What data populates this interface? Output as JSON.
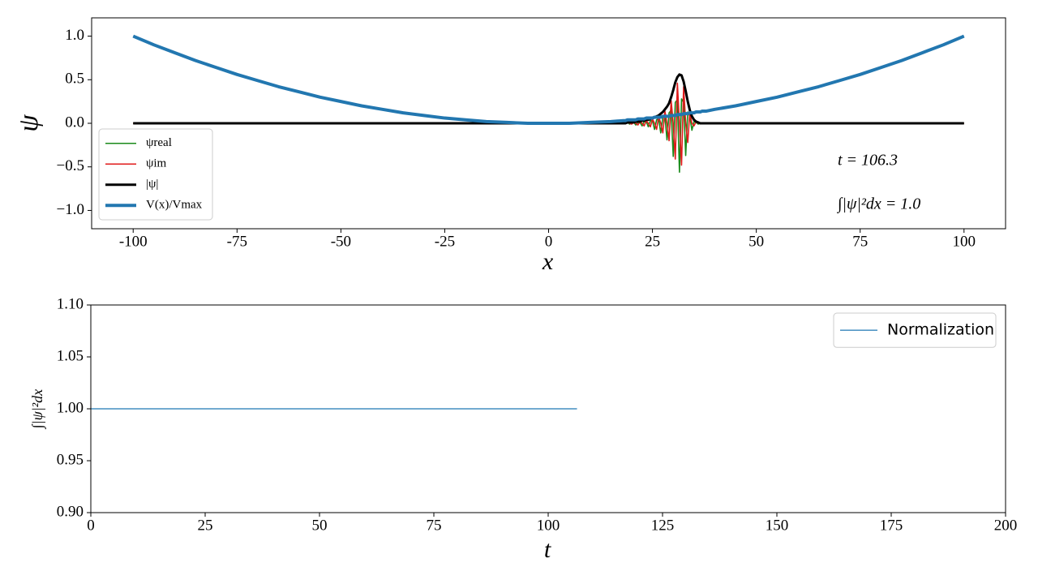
{
  "chart_data": [
    {
      "type": "line",
      "xlabel": "x",
      "ylabel": "ψ",
      "xlim": [
        -110,
        110
      ],
      "ylim": [
        -1.21,
        1.21
      ],
      "xticks": [
        -100,
        -75,
        -50,
        -25,
        0,
        25,
        50,
        75,
        100
      ],
      "yticks": [
        {
          "value": -1.0,
          "label": "−1.0"
        },
        {
          "value": -0.5,
          "label": "−0.5"
        },
        {
          "value": 0.0,
          "label": "0.0"
        },
        {
          "value": 0.5,
          "label": "0.5"
        },
        {
          "value": 1.0,
          "label": "1.0"
        }
      ],
      "legend": "lower left",
      "annotations": [
        "t = 106.3",
        "∫|ψ|²dx = 1.0"
      ],
      "x": [
        -100,
        -95,
        -90,
        -85,
        -80,
        -75,
        -70,
        -65,
        -60,
        -55,
        -50,
        -45,
        -40,
        -35,
        -30,
        -25,
        -20,
        -15,
        -10,
        -5,
        0,
        5,
        10,
        15,
        18,
        18.5,
        19,
        19.5,
        20,
        20.5,
        21,
        21.5,
        22,
        22.5,
        23,
        23.5,
        24,
        24.5,
        25,
        25.5,
        26,
        26.5,
        27,
        27.5,
        28,
        28.5,
        29,
        29.5,
        30,
        30.5,
        31,
        31.5,
        32,
        32.5,
        33,
        33.5,
        34,
        34.5,
        35,
        35.5,
        36,
        36.5,
        37,
        37.5,
        38,
        40,
        45,
        50,
        55,
        60,
        65,
        70,
        75,
        80,
        85,
        90,
        95,
        100
      ],
      "series": [
        {
          "name": "ψreal",
          "color": "#1a8a1a",
          "linewidth": 1.6,
          "values": [
            0,
            0,
            0,
            0,
            0,
            0,
            0,
            0,
            0,
            0,
            0,
            0,
            0,
            0,
            0,
            0,
            0,
            0,
            0,
            0,
            0,
            0,
            0,
            0,
            0,
            0,
            0.01,
            -0.01,
            0.01,
            0.01,
            -0.02,
            0.01,
            0.01,
            -0.03,
            0.02,
            0.02,
            -0.04,
            0.03,
            0.03,
            -0.07,
            0.04,
            0.05,
            -0.11,
            0.07,
            0.08,
            -0.19,
            0.12,
            0.15,
            -0.38,
            0.24,
            0.27,
            -0.56,
            0.28,
            0.24,
            -0.37,
            0.13,
            0.08,
            -0.08,
            0.02,
            0.01,
            -0.01,
            0,
            0,
            0,
            0,
            0,
            0,
            0,
            0,
            0,
            0,
            0,
            0,
            0,
            0,
            0,
            0,
            0
          ]
        },
        {
          "name": "ψim",
          "color": "#e01b1b",
          "linewidth": 1.6,
          "values": [
            0,
            0,
            0,
            0,
            0,
            0,
            0,
            0,
            0,
            0,
            0,
            0,
            0,
            0,
            0,
            0,
            0,
            0,
            0,
            0,
            0,
            0,
            0,
            0,
            0,
            0,
            0.01,
            0,
            -0.01,
            0.01,
            0,
            -0.02,
            0.02,
            0,
            -0.03,
            0.03,
            0,
            -0.04,
            0.05,
            0,
            -0.07,
            0.08,
            0,
            -0.11,
            0.14,
            0,
            -0.2,
            0.26,
            0,
            -0.41,
            0.46,
            0,
            -0.48,
            0.42,
            0,
            -0.22,
            0.13,
            0,
            -0.03,
            0.02,
            0,
            0,
            0,
            0,
            0,
            0,
            0,
            0,
            0,
            0,
            0,
            0,
            0,
            0,
            0,
            0,
            0,
            0
          ]
        },
        {
          "name": "|ψ|",
          "color": "#000000",
          "linewidth": 3,
          "values": [
            0,
            0,
            0,
            0,
            0,
            0,
            0,
            0,
            0,
            0,
            0,
            0,
            0,
            0,
            0,
            0,
            0,
            0,
            0,
            0,
            0,
            0,
            0,
            0,
            0,
            0,
            0.01,
            0.01,
            0.01,
            0.01,
            0.02,
            0.02,
            0.02,
            0.03,
            0.03,
            0.04,
            0.04,
            0.05,
            0.06,
            0.07,
            0.08,
            0.09,
            0.11,
            0.13,
            0.16,
            0.19,
            0.23,
            0.3,
            0.38,
            0.47,
            0.53,
            0.56,
            0.55,
            0.48,
            0.37,
            0.25,
            0.15,
            0.08,
            0.04,
            0.02,
            0.01,
            0,
            0,
            0,
            0,
            0,
            0,
            0,
            0,
            0,
            0,
            0,
            0,
            0,
            0,
            0,
            0,
            0
          ]
        },
        {
          "name": "V(x)/Vmax",
          "color": "#2277b0",
          "linewidth": 4,
          "values": [
            1,
            0.9,
            0.81,
            0.72,
            0.64,
            0.56,
            0.49,
            0.42,
            0.36,
            0.3,
            0.25,
            0.2,
            0.16,
            0.12,
            0.09,
            0.06,
            0.04,
            0.02,
            0.01,
            0,
            0,
            0,
            0.01,
            0.02,
            0.03,
            0.03,
            0.04,
            0.04,
            0.04,
            0.04,
            0.04,
            0.05,
            0.05,
            0.05,
            0.05,
            0.06,
            0.06,
            0.06,
            0.06,
            0.07,
            0.07,
            0.07,
            0.07,
            0.08,
            0.08,
            0.08,
            0.08,
            0.09,
            0.09,
            0.09,
            0.1,
            0.1,
            0.1,
            0.11,
            0.11,
            0.11,
            0.12,
            0.12,
            0.12,
            0.13,
            0.13,
            0.13,
            0.14,
            0.14,
            0.14,
            0.16,
            0.2,
            0.25,
            0.3,
            0.36,
            0.42,
            0.49,
            0.56,
            0.64,
            0.72,
            0.81,
            0.9,
            1
          ]
        }
      ]
    },
    {
      "type": "line",
      "xlabel": "t",
      "ylabel": "∫|ψ|²dx",
      "xlim": [
        0,
        200
      ],
      "ylim": [
        0.9,
        1.1
      ],
      "xticks": [
        0,
        25,
        50,
        75,
        100,
        125,
        150,
        175,
        200
      ],
      "yticks": [
        {
          "value": 0.9,
          "label": "0.90"
        },
        {
          "value": 0.95,
          "label": "0.95"
        },
        {
          "value": 1.0,
          "label": "1.00"
        },
        {
          "value": 1.05,
          "label": "1.05"
        },
        {
          "value": 1.1,
          "label": "1.10"
        }
      ],
      "legend": "upper right",
      "x": [
        0,
        106.3
      ],
      "series": [
        {
          "name": "Normalization",
          "color": "#1f77b4",
          "linewidth": 1.3,
          "values": [
            1.0,
            1.0
          ]
        }
      ]
    }
  ]
}
